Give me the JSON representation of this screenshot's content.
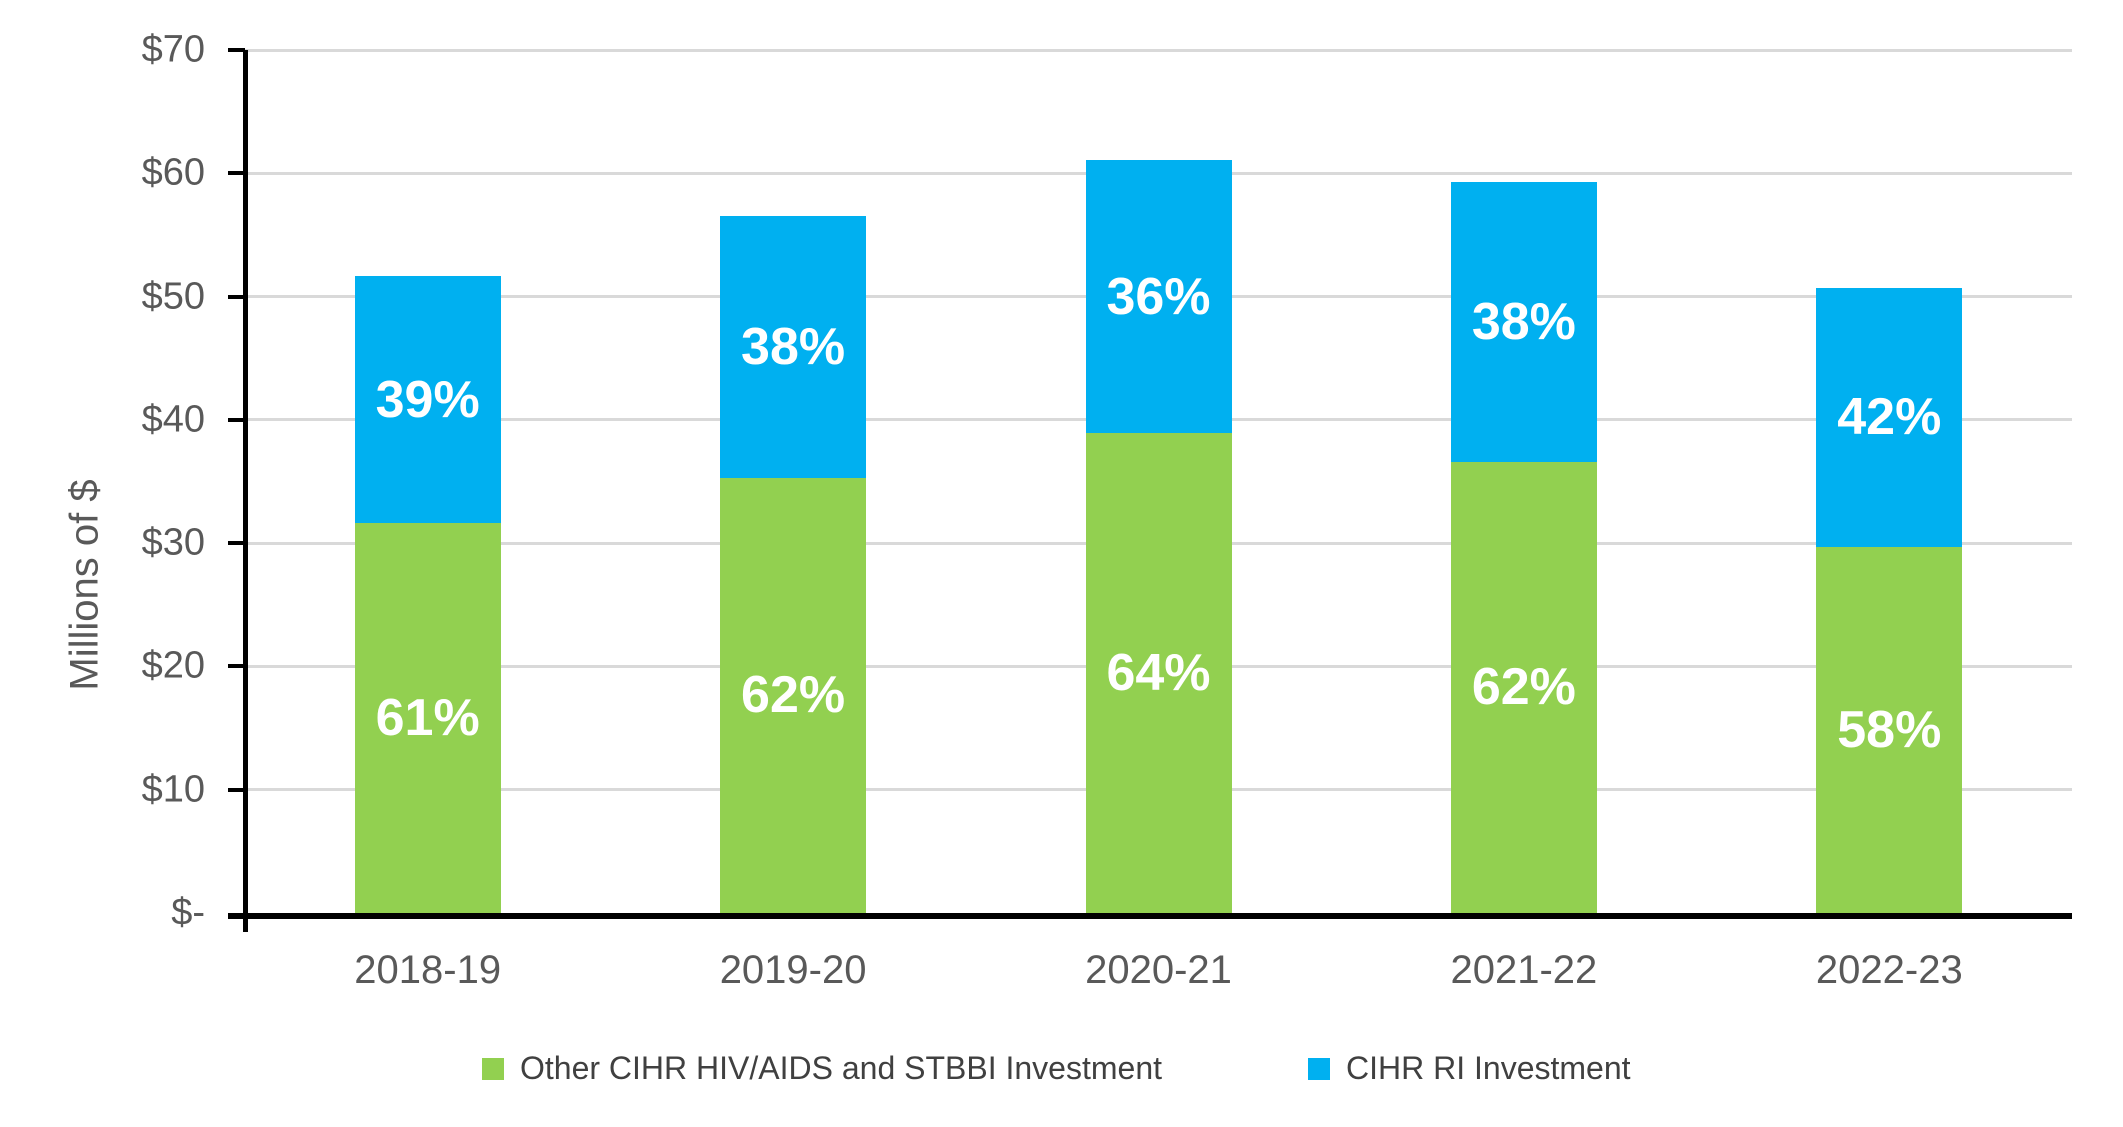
{
  "chart_data": {
    "type": "bar",
    "stacked": true,
    "title": "",
    "categories": [
      "2018-19",
      "2019-20",
      "2020-21",
      "2021-22",
      "2022-23"
    ],
    "series": [
      {
        "name": "Other CIHR HIV/AIDS and STBBI Investment",
        "color": "#92D050",
        "values": [
          31.6,
          35.3,
          38.9,
          36.6,
          29.7
        ],
        "segment_labels": [
          "61%",
          "62%",
          "64%",
          "62%",
          "58%"
        ]
      },
      {
        "name": "CIHR RI Investment",
        "color": "#00B0F0",
        "values": [
          20.1,
          21.2,
          22.2,
          22.7,
          21.0
        ],
        "segment_labels": [
          "39%",
          "38%",
          "36%",
          "38%",
          "42%"
        ]
      }
    ],
    "totals": [
      51.7,
      56.5,
      61.1,
      59.3,
      50.7
    ],
    "xlabel": "",
    "ylabel": "Millions of $",
    "ylim": [
      0,
      70
    ],
    "ytick_step": 10,
    "ytick_labels": [
      "$-",
      "$10",
      "$20",
      "$30",
      "$40",
      "$50",
      "$60",
      "$70"
    ],
    "grid": true,
    "legend_position": "bottom",
    "colors": {
      "grid": "#D9D9D9",
      "axis": "#000000",
      "axis_text": "#595959",
      "legend_text": "#404040",
      "bar_label_text": "#FFFFFF",
      "background": "#FFFFFF"
    }
  }
}
